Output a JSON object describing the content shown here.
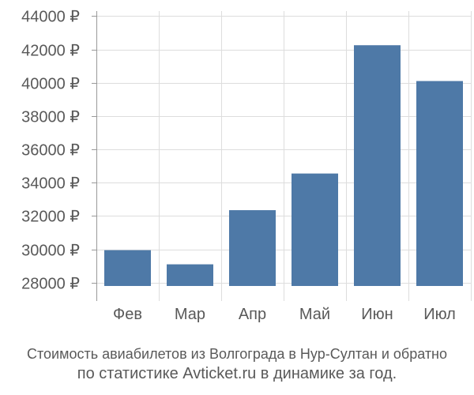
{
  "chart_data": {
    "type": "bar",
    "categories": [
      "Фев",
      "Мар",
      "Апр",
      "Май",
      "Июн",
      "Июл"
    ],
    "values": [
      29950,
      29100,
      32350,
      34550,
      42250,
      40100
    ],
    "y_tick_labels": [
      "28000 ₽",
      "30000 ₽",
      "32000 ₽",
      "34000 ₽",
      "36000 ₽",
      "38000 ₽",
      "40000 ₽",
      "42000 ₽",
      "44000 ₽"
    ],
    "y_ticks": [
      28000,
      30000,
      32000,
      34000,
      36000,
      38000,
      40000,
      42000,
      44000
    ],
    "ylim": [
      27800,
      44300
    ],
    "grid": true,
    "bar_color": "#4e79a7",
    "grid_color": "#dddddd",
    "axis_color": "#999999",
    "text_color": "#595959"
  },
  "caption": {
    "line1": "Стоимость авиабилетов из Волгограда в Нур-Султан и обратно",
    "line2": "по статистике Avticket.ru в динамике за год."
  }
}
